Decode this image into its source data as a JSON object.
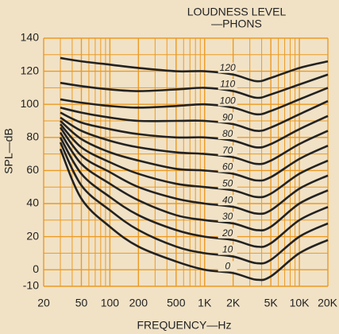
{
  "chart_data": {
    "type": "line",
    "title": [
      "LOUDNESS LEVEL",
      "—PHONS"
    ],
    "x_label": "FREQUENCY—Hz",
    "y_label": "SPL—dB",
    "x_log": true,
    "grid": true,
    "grid_color": "#ec9a22",
    "line_color": "#222222",
    "xlim": [
      20,
      20000
    ],
    "ylim": [
      -10,
      140
    ],
    "xticks": [
      20,
      50,
      100,
      200,
      500,
      {
        "value": 1000,
        "label": "1K"
      },
      {
        "value": 2000,
        "label": "2K"
      },
      {
        "value": 5000,
        "label": "5K"
      },
      {
        "value": 10000,
        "label": "10K"
      },
      {
        "value": 20000,
        "label": "20K"
      }
    ],
    "x_minor_ticks": [
      30,
      40,
      60,
      70,
      80,
      90,
      300,
      400,
      600,
      700,
      800,
      900,
      3000,
      4000,
      6000,
      7000,
      8000,
      9000
    ],
    "yticks": [
      140,
      120,
      100,
      80,
      60,
      40,
      20,
      0,
      -10
    ],
    "y_minor_ticks": [
      130,
      110,
      90,
      70,
      50,
      30,
      10
    ],
    "x": [
      30,
      50,
      100,
      200,
      500,
      1000,
      2000,
      3500,
      5000,
      10000,
      20000
    ],
    "series": [
      {
        "name": "120",
        "values": [
          128,
          126,
          124,
          122,
          120,
          120,
          118,
          114,
          116,
          122,
          126
        ]
      },
      {
        "name": "110",
        "values": [
          113,
          111,
          109,
          108,
          109,
          110,
          108,
          104,
          106,
          112,
          118
        ]
      },
      {
        "name": "100",
        "values": [
          103,
          101,
          99,
          98,
          99,
          100,
          98,
          94,
          96,
          103,
          110
        ]
      },
      {
        "name": "90",
        "values": [
          98,
          95,
          92,
          90,
          90,
          90,
          88,
          84,
          86,
          94,
          102
        ]
      },
      {
        "name": "80",
        "values": [
          95,
          89,
          85,
          82,
          80,
          80,
          78,
          74,
          76,
          85,
          93
        ]
      },
      {
        "name": "70",
        "values": [
          92,
          84,
          78,
          74,
          71,
          70,
          68,
          64,
          66,
          76,
          84
        ]
      },
      {
        "name": "60",
        "values": [
          90,
          79,
          71,
          66,
          61,
          60,
          58,
          54,
          56,
          67,
          75
        ]
      },
      {
        "name": "50",
        "values": [
          88,
          74,
          65,
          58,
          52,
          50,
          48,
          44,
          46,
          58,
          66
        ]
      },
      {
        "name": "40",
        "values": [
          86,
          69,
          59,
          50,
          43,
          40,
          38,
          34,
          36,
          49,
          57
        ]
      },
      {
        "name": "30",
        "values": [
          83,
          64,
          52,
          42,
          33,
          30,
          28,
          24,
          26,
          40,
          48
        ]
      },
      {
        "name": "20",
        "values": [
          80,
          58,
          44,
          33,
          24,
          20,
          18,
          14,
          16,
          30,
          38
        ]
      },
      {
        "name": "10",
        "values": [
          77,
          51,
          36,
          24,
          14,
          10,
          8,
          4,
          6,
          20,
          28
        ]
      },
      {
        "name": "0",
        "values": [
          73,
          43,
          26,
          14,
          5,
          0,
          -2,
          -6,
          -4,
          10,
          18
        ]
      }
    ]
  }
}
